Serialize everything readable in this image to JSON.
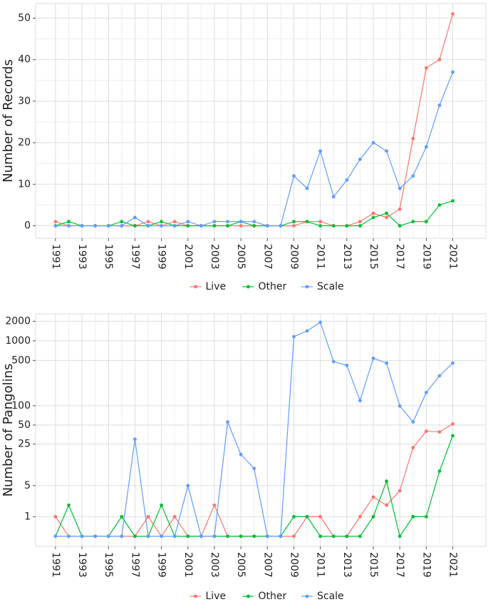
{
  "chart_data": [
    {
      "type": "line",
      "y_label": "Number of Records",
      "x": [
        1991,
        1992,
        1993,
        1994,
        1995,
        1996,
        1997,
        1998,
        1999,
        2000,
        2001,
        2002,
        2003,
        2004,
        2005,
        2006,
        2007,
        2008,
        2009,
        2010,
        2011,
        2012,
        2013,
        2014,
        2015,
        2016,
        2017,
        2018,
        2019,
        2020,
        2021
      ],
      "series": [
        {
          "name": "Live",
          "color": "#f8766d",
          "values": [
            1,
            0,
            0,
            0,
            0,
            0,
            0,
            1,
            0,
            1,
            0,
            0,
            0,
            0,
            0,
            0,
            0,
            0,
            0,
            1,
            1,
            0,
            0,
            1,
            3,
            2,
            4,
            21,
            38,
            40,
            51
          ]
        },
        {
          "name": "Other",
          "color": "#00ba38",
          "values": [
            0,
            1,
            0,
            0,
            0,
            1,
            0,
            0,
            1,
            0,
            0,
            0,
            0,
            0,
            1,
            0,
            0,
            0,
            1,
            1,
            0,
            0,
            0,
            0,
            2,
            3,
            0,
            1,
            1,
            5,
            6
          ]
        },
        {
          "name": "Scale",
          "color": "#619cff",
          "values": [
            0,
            0,
            0,
            0,
            0,
            0,
            2,
            0,
            0,
            0,
            1,
            0,
            1,
            1,
            1,
            1,
            0,
            0,
            12,
            9,
            18,
            7,
            11,
            16,
            20,
            18,
            9,
            12,
            19,
            29,
            37
          ]
        }
      ],
      "xlim": [
        1989.5,
        2023.5
      ],
      "xticks": [
        1991,
        1993,
        1995,
        1997,
        1999,
        2001,
        2003,
        2005,
        2007,
        2009,
        2011,
        2013,
        2015,
        2017,
        2019,
        2021
      ],
      "ylim": [
        -3,
        53.5
      ],
      "yticks": [
        0,
        10,
        20,
        30,
        40,
        50
      ],
      "grid": true,
      "legend": "bottom"
    },
    {
      "type": "line",
      "y_label": "Number of Pangolins",
      "yscale": "log1p",
      "x": [
        1991,
        1992,
        1993,
        1994,
        1995,
        1996,
        1997,
        1998,
        1999,
        2000,
        2001,
        2002,
        2003,
        2004,
        2005,
        2006,
        2007,
        2008,
        2009,
        2010,
        2011,
        2012,
        2013,
        2014,
        2015,
        2016,
        2017,
        2018,
        2019,
        2020,
        2021
      ],
      "series": [
        {
          "name": "Live",
          "color": "#f8766d",
          "values": [
            1,
            0,
            0,
            0,
            0,
            0,
            0,
            1,
            0,
            1,
            0,
            0,
            2,
            0,
            0,
            0,
            0,
            0,
            0,
            1,
            1,
            0,
            0,
            1,
            3,
            2,
            4,
            22,
            40,
            39,
            52
          ]
        },
        {
          "name": "Other",
          "color": "#00ba38",
          "values": [
            0,
            2,
            0,
            0,
            0,
            1,
            0,
            0,
            2,
            0,
            0,
            0,
            0,
            0,
            0,
            0,
            0,
            0,
            1,
            1,
            0,
            0,
            0,
            0,
            1,
            6,
            0,
            1,
            1,
            9,
            34
          ]
        },
        {
          "name": "Scale",
          "color": "#619cff",
          "values": [
            0,
            0,
            0,
            0,
            0,
            0,
            30,
            0,
            0,
            0,
            5,
            0,
            0,
            56,
            17,
            10,
            0,
            0,
            1160,
            1420,
            1930,
            480,
            420,
            120,
            540,
            455,
            99,
            56,
            160,
            290,
            455
          ]
        }
      ],
      "xlim": [
        1989.5,
        2023.5
      ],
      "xticks": [
        1991,
        1993,
        1995,
        1997,
        1999,
        2001,
        2003,
        2005,
        2007,
        2009,
        2011,
        2013,
        2015,
        2017,
        2019,
        2021
      ],
      "ylim": [
        -0.3,
        2600
      ],
      "yticks": [
        1,
        5,
        25,
        50,
        100,
        500,
        1000,
        2000
      ],
      "grid": true,
      "legend": "bottom"
    }
  ]
}
